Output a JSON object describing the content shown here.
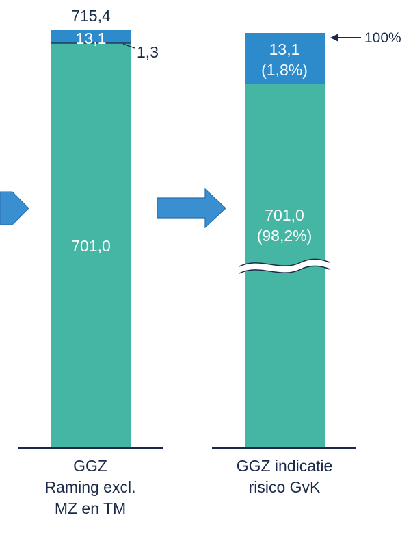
{
  "chart_data": [
    {
      "type": "bar",
      "category": "GGZ Raming excl. MZ en TM",
      "category_lines": [
        "GGZ",
        "Raming excl.",
        "MZ en TM"
      ],
      "total_label": "715,4",
      "segments": [
        {
          "value": 701.0,
          "label": "701,0",
          "color": "#45B6A3"
        },
        {
          "value": 1.3,
          "label": "1,3",
          "color": "#45B6A3"
        },
        {
          "value": 13.1,
          "label": "13,1",
          "color": "#2E8BCB"
        }
      ]
    },
    {
      "type": "bar",
      "category": "GGZ indicatie risico GvK",
      "category_lines": [
        "GGZ indicatie",
        "risico GvK"
      ],
      "axis_break": true,
      "top_marker": "100%",
      "segments": [
        {
          "value": 701.0,
          "label": "701,0",
          "pct_label": "(98,2%)",
          "color": "#45B6A3"
        },
        {
          "value": 13.1,
          "label": "13,1",
          "pct_label": "(1,8%)",
          "color": "#2E8BCB"
        }
      ]
    }
  ],
  "colors": {
    "green": "#45B6A3",
    "blue": "#2E8BCB",
    "arrow": "#3A8FD0",
    "navy": "#1B2A4A"
  }
}
